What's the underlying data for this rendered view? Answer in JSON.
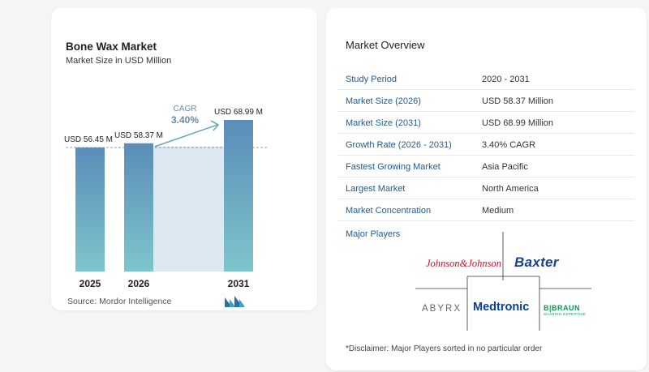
{
  "chart_data": {
    "type": "bar",
    "title": "Bone Wax Market",
    "subtitle": "Market Size in USD Million",
    "categories": [
      "2025",
      "2026",
      "2031"
    ],
    "values": [
      56.45,
      58.37,
      68.99
    ],
    "data_labels": [
      "USD 56.45 M",
      "USD 58.37 M",
      "USD 68.99 M"
    ],
    "cagr_label": "CAGR",
    "cagr_value": "3.40%",
    "colors": {
      "bar_top": "#5b8db8",
      "bar_bottom": "#7ec5cc",
      "band": "#dde8f3",
      "accent": "#5aa6ad"
    }
  },
  "source": "Source:  Mordor Intelligence",
  "overview": {
    "title": "Market Overview",
    "rows": [
      {
        "key": "Study Period",
        "value": "2020 - 2031"
      },
      {
        "key": "Market Size (2026)",
        "value": "USD 58.37 Million"
      },
      {
        "key": "Market Size (2031)",
        "value": "USD 68.99 Million"
      },
      {
        "key": "Growth Rate (2026 - 2031)",
        "value": "3.40% CAGR"
      },
      {
        "key": "Fastest Growing Market",
        "value": "Asia Pacific"
      },
      {
        "key": "Largest Market",
        "value": "North America"
      },
      {
        "key": "Market Concentration",
        "value": "Medium"
      }
    ],
    "players_title": "Major Players",
    "players": [
      "Johnson&Johnson",
      "Baxter",
      "ABYRX",
      "Medtronic",
      "B|BRAUN",
      "SHARING EXPERTISE"
    ],
    "disclaimer": "*Disclaimer: Major Players sorted in no particular order"
  }
}
